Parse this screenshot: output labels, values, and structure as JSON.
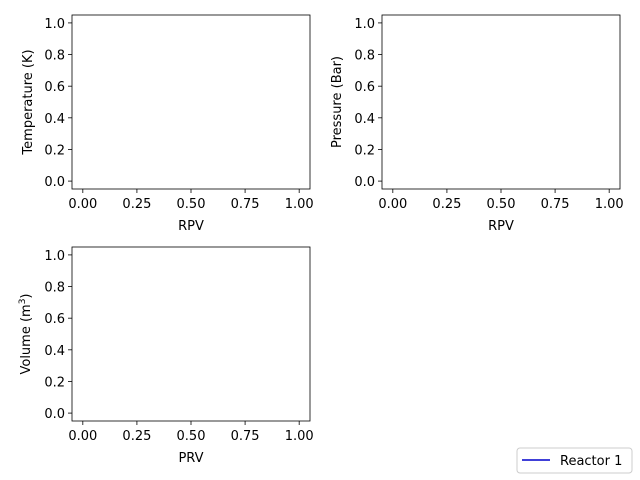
{
  "chart_data": [
    {
      "type": "line",
      "xlabel": "RPV",
      "ylabel": "Temperature (K)",
      "xlim": [
        -0.05,
        1.05
      ],
      "ylim": [
        -0.05,
        1.05
      ],
      "xticks": [
        0.0,
        0.25,
        0.5,
        0.75,
        1.0
      ],
      "xtick_labels": [
        "0.00",
        "0.25",
        "0.50",
        "0.75",
        "1.00"
      ],
      "yticks": [
        0.0,
        0.2,
        0.4,
        0.6,
        0.8,
        1.0
      ],
      "ytick_labels": [
        "0.0",
        "0.2",
        "0.4",
        "0.6",
        "0.8",
        "1.0"
      ],
      "grid": false,
      "series": []
    },
    {
      "type": "line",
      "xlabel": "RPV",
      "ylabel": "Pressure (Bar)",
      "xlim": [
        -0.05,
        1.05
      ],
      "ylim": [
        -0.05,
        1.05
      ],
      "xticks": [
        0.0,
        0.25,
        0.5,
        0.75,
        1.0
      ],
      "xtick_labels": [
        "0.00",
        "0.25",
        "0.50",
        "0.75",
        "1.00"
      ],
      "yticks": [
        0.0,
        0.2,
        0.4,
        0.6,
        0.8,
        1.0
      ],
      "ytick_labels": [
        "0.0",
        "0.2",
        "0.4",
        "0.6",
        "0.8",
        "1.0"
      ],
      "grid": false,
      "series": []
    },
    {
      "type": "line",
      "xlabel": "PRV",
      "ylabel_base": "Volume (m",
      "ylabel_sup": "3",
      "ylabel_end": ")",
      "xlim": [
        -0.05,
        1.05
      ],
      "ylim": [
        -0.05,
        1.05
      ],
      "xticks": [
        0.0,
        0.25,
        0.5,
        0.75,
        1.0
      ],
      "xtick_labels": [
        "0.00",
        "0.25",
        "0.50",
        "0.75",
        "1.00"
      ],
      "yticks": [
        0.0,
        0.2,
        0.4,
        0.6,
        0.8,
        1.0
      ],
      "ytick_labels": [
        "0.0",
        "0.2",
        "0.4",
        "0.6",
        "0.8",
        "1.0"
      ],
      "grid": false,
      "series": []
    }
  ],
  "legend": {
    "placement": "bottom-right",
    "entries": [
      {
        "label": "Reactor 1",
        "color": "#0000cc"
      }
    ]
  }
}
